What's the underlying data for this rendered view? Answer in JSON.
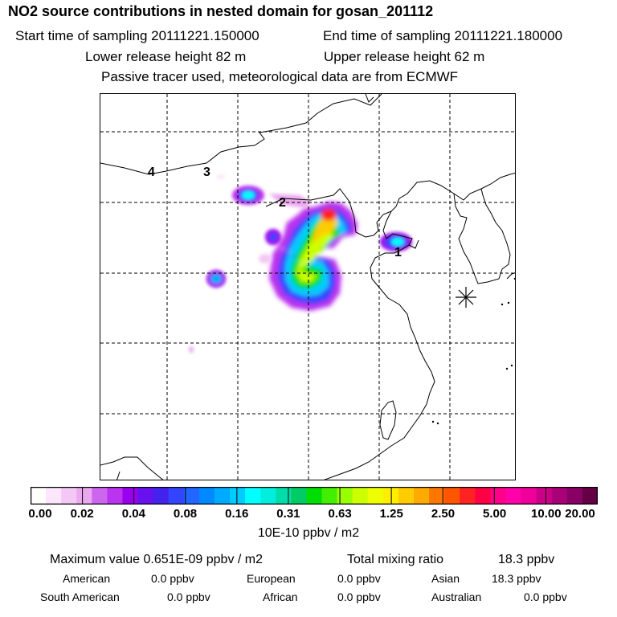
{
  "header": {
    "title": "NO2 source contributions in nested domain for gosan_201112",
    "start_label": "Start time of sampling 20111221.150000",
    "end_label": "End time of sampling 20111221.180000",
    "lower_label": "Lower release height   82 m",
    "upper_label": "Upper release height   62 m",
    "tracer_label": "Passive tracer used, meteorological data are from ECMWF"
  },
  "map": {
    "source_labels": [
      "1",
      "2",
      "3",
      "4"
    ],
    "station_marker": "asterisk-icon"
  },
  "colorbar": {
    "tick_labels": [
      "0.00",
      "0.02",
      "0.04",
      "0.08",
      "0.16",
      "0.31",
      "0.63",
      "1.25",
      "2.50",
      "5.00",
      "10.00",
      "20.00"
    ],
    "colors": [
      "#ffffff",
      "#fbe6fb",
      "#f4c8f4",
      "#eaa8ee",
      "#cc66ee",
      "#bb33ee",
      "#9900ee",
      "#6611ee",
      "#4422ee",
      "#3344ff",
      "#2266ff",
      "#0088ff",
      "#00aaff",
      "#00ccff",
      "#00ffff",
      "#00eedd",
      "#00ddaa",
      "#00cc66",
      "#00dd00",
      "#44ee00",
      "#99ff00",
      "#ccff00",
      "#eeff00",
      "#ffee00",
      "#ffcc00",
      "#ffaa00",
      "#ff7700",
      "#ff5500",
      "#ff2222",
      "#ff0044",
      "#ff0088",
      "#ff00aa",
      "#ee0099",
      "#cc0088",
      "#aa0077",
      "#880066",
      "#660044"
    ],
    "unit_label": "10E-10 ppbv / m2"
  },
  "footer": {
    "max_label": "Maximum value  0.651E-09 ppbv / m2",
    "total_label": "Total mixing ratio",
    "total_value": "18.3 ppbv",
    "regions": [
      {
        "name": "American",
        "value": "0.0 ppbv"
      },
      {
        "name": "European",
        "value": "0.0 ppbv"
      },
      {
        "name": "Asian",
        "value": "18.3 ppbv"
      },
      {
        "name": "South American",
        "value": "0.0 ppbv"
      },
      {
        "name": "African",
        "value": "0.0 ppbv"
      },
      {
        "name": "Australian",
        "value": "0.0 ppbv"
      }
    ]
  }
}
